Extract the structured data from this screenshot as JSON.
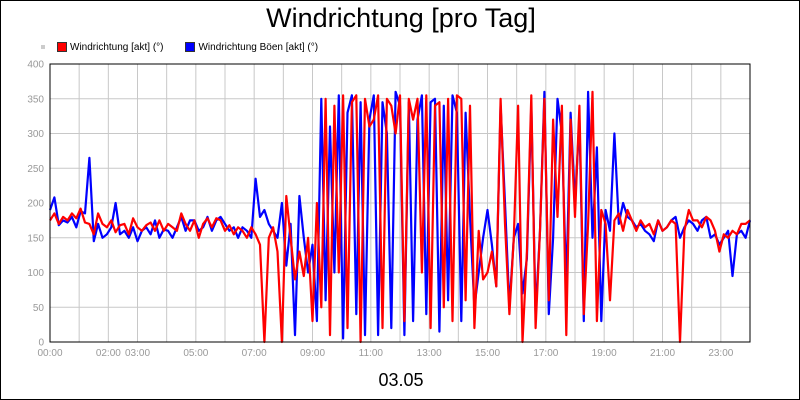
{
  "page": {
    "title": "Windrichtung [pro Tag]",
    "legend": [
      {
        "label": "Windrichtung [akt] (°)",
        "color": "#ff0000"
      },
      {
        "label": "Windrichtung Böen [akt] (°)",
        "color": "#0000ff"
      }
    ]
  },
  "chart_data": {
    "type": "line",
    "title": "Windrichtung [pro Tag]",
    "xlabel": "03.05",
    "ylabel": "",
    "xlim": [
      0,
      24
    ],
    "ylim": [
      0,
      400
    ],
    "grid": true,
    "legend_position": "top-left",
    "y_ticks": [
      "0",
      "50",
      "100",
      "150",
      "200",
      "250",
      "300",
      "350",
      "400"
    ],
    "x_ticks": [
      {
        "label": "00:00",
        "x": 0
      },
      {
        "label": "02:00",
        "x": 2
      },
      {
        "label": "03:00",
        "x": 3
      },
      {
        "label": "05:00",
        "x": 5
      },
      {
        "label": "07:00",
        "x": 7
      },
      {
        "label": "09:00",
        "x": 9
      },
      {
        "label": "11:00",
        "x": 11
      },
      {
        "label": "13:00",
        "x": 13
      },
      {
        "label": "15:00",
        "x": 15
      },
      {
        "label": "17:00",
        "x": 17
      },
      {
        "label": "19:00",
        "x": 19
      },
      {
        "label": "21:00",
        "x": 21
      },
      {
        "label": "23:00",
        "x": 23
      }
    ],
    "series": [
      {
        "name": "Windrichtung [akt] (°)",
        "color": "#ff0000",
        "x": [
          0,
          0.15,
          0.3,
          0.45,
          0.6,
          0.75,
          0.9,
          1.05,
          1.2,
          1.35,
          1.5,
          1.65,
          1.8,
          1.95,
          2.1,
          2.25,
          2.4,
          2.55,
          2.7,
          2.85,
          3.0,
          3.15,
          3.3,
          3.45,
          3.6,
          3.75,
          3.9,
          4.05,
          4.2,
          4.35,
          4.5,
          4.65,
          4.8,
          4.95,
          5.1,
          5.25,
          5.4,
          5.55,
          5.7,
          5.85,
          6.0,
          6.15,
          6.3,
          6.45,
          6.6,
          6.75,
          6.9,
          7.05,
          7.2,
          7.35,
          7.5,
          7.65,
          7.8,
          7.95,
          8.1,
          8.25,
          8.4,
          8.55,
          8.7,
          8.85,
          9.0,
          9.15,
          9.3,
          9.45,
          9.6,
          9.75,
          9.9,
          10.05,
          10.2,
          10.35,
          10.5,
          10.65,
          10.8,
          10.95,
          11.1,
          11.25,
          11.4,
          11.55,
          11.7,
          11.85,
          12.0,
          12.15,
          12.3,
          12.45,
          12.6,
          12.75,
          12.9,
          13.05,
          13.2,
          13.35,
          13.5,
          13.65,
          13.8,
          13.95,
          14.1,
          14.25,
          14.4,
          14.55,
          14.7,
          14.85,
          15.0,
          15.15,
          15.3,
          15.45,
          15.6,
          15.75,
          15.9,
          16.05,
          16.2,
          16.35,
          16.5,
          16.65,
          16.8,
          16.95,
          17.1,
          17.25,
          17.4,
          17.55,
          17.7,
          17.85,
          18.0,
          18.15,
          18.3,
          18.45,
          18.6,
          18.75,
          18.9,
          19.05,
          19.2,
          19.35,
          19.5,
          19.65,
          19.8,
          19.95,
          20.1,
          20.25,
          20.4,
          20.55,
          20.7,
          20.85,
          21.0,
          21.15,
          21.3,
          21.45,
          21.6,
          21.75,
          21.9,
          22.05,
          22.2,
          22.35,
          22.5,
          22.65,
          22.8,
          22.95,
          23.1,
          23.25,
          23.4,
          23.55,
          23.7,
          23.85,
          24.0
        ],
        "values": [
          175,
          185,
          170,
          180,
          175,
          185,
          178,
          192,
          172,
          170,
          155,
          185,
          170,
          165,
          175,
          158,
          168,
          170,
          155,
          178,
          165,
          160,
          168,
          172,
          160,
          175,
          160,
          170,
          165,
          160,
          185,
          170,
          160,
          175,
          150,
          170,
          178,
          165,
          178,
          175,
          160,
          168,
          155,
          165,
          160,
          150,
          165,
          155,
          140,
          0,
          150,
          165,
          130,
          0,
          210,
          150,
          90,
          130,
          95,
          150,
          30,
          200,
          50,
          350,
          10,
          340,
          100,
          355,
          20,
          345,
          355,
          0,
          350,
          310,
          320,
          355,
          20,
          350,
          340,
          300,
          355,
          30,
          350,
          320,
          350,
          100,
          355,
          20,
          340,
          345,
          50,
          350,
          30,
          355,
          350,
          60,
          340,
          20,
          160,
          90,
          100,
          130,
          80,
          350,
          170,
          40,
          150,
          340,
          0,
          130,
          355,
          20,
          160,
          350,
          60,
          320,
          180,
          340,
          10,
          320,
          180,
          340,
          40,
          170,
          360,
          30,
          190,
          170,
          60,
          175,
          185,
          160,
          190,
          175,
          160,
          175,
          165,
          170,
          155,
          175,
          160,
          165,
          175,
          170,
          0,
          160,
          190,
          175,
          175,
          165,
          180,
          175,
          160,
          130,
          155,
          150,
          160,
          155,
          170,
          170,
          175
        ],
        "note": ""
      },
      {
        "name": "Windrichtung Böen [akt] (°)",
        "color": "#0000ff",
        "x": [
          0,
          0.15,
          0.3,
          0.45,
          0.6,
          0.75,
          0.9,
          1.05,
          1.2,
          1.35,
          1.5,
          1.65,
          1.8,
          1.95,
          2.1,
          2.25,
          2.4,
          2.55,
          2.7,
          2.85,
          3.0,
          3.15,
          3.3,
          3.45,
          3.6,
          3.75,
          3.9,
          4.05,
          4.2,
          4.35,
          4.5,
          4.65,
          4.8,
          4.95,
          5.1,
          5.25,
          5.4,
          5.55,
          5.7,
          5.85,
          6.0,
          6.15,
          6.3,
          6.45,
          6.6,
          6.75,
          6.9,
          7.05,
          7.2,
          7.35,
          7.5,
          7.65,
          7.8,
          7.95,
          8.1,
          8.25,
          8.4,
          8.55,
          8.7,
          8.85,
          9.0,
          9.15,
          9.3,
          9.45,
          9.6,
          9.75,
          9.9,
          10.05,
          10.2,
          10.35,
          10.5,
          10.65,
          10.8,
          10.95,
          11.1,
          11.25,
          11.4,
          11.55,
          11.7,
          11.85,
          12.0,
          12.15,
          12.3,
          12.45,
          12.6,
          12.75,
          12.9,
          13.05,
          13.2,
          13.35,
          13.5,
          13.65,
          13.8,
          13.95,
          14.1,
          14.25,
          14.4,
          14.55,
          14.7,
          14.85,
          15.0,
          15.15,
          15.3,
          15.45,
          15.6,
          15.75,
          15.9,
          16.05,
          16.2,
          16.35,
          16.5,
          16.65,
          16.8,
          16.95,
          17.1,
          17.25,
          17.4,
          17.55,
          17.7,
          17.85,
          18.0,
          18.15,
          18.3,
          18.45,
          18.6,
          18.75,
          18.9,
          19.05,
          19.2,
          19.35,
          19.5,
          19.65,
          19.8,
          19.95,
          20.1,
          20.25,
          20.4,
          20.55,
          20.7,
          20.85,
          21.0,
          21.15,
          21.3,
          21.45,
          21.6,
          21.75,
          21.9,
          22.05,
          22.2,
          22.35,
          22.5,
          22.65,
          22.8,
          22.95,
          23.1,
          23.25,
          23.4,
          23.55,
          23.7,
          23.85,
          24.0
        ],
        "values": [
          190,
          208,
          168,
          175,
          172,
          180,
          165,
          188,
          185,
          265,
          145,
          170,
          150,
          155,
          165,
          200,
          155,
          160,
          150,
          165,
          145,
          160,
          165,
          155,
          175,
          150,
          162,
          160,
          150,
          165,
          180,
          160,
          175,
          175,
          160,
          165,
          180,
          160,
          175,
          180,
          170,
          160,
          165,
          150,
          165,
          160,
          150,
          235,
          180,
          190,
          170,
          160,
          150,
          200,
          110,
          170,
          10,
          210,
          150,
          100,
          140,
          30,
          350,
          60,
          310,
          100,
          355,
          5,
          330,
          355,
          40,
          345,
          10,
          320,
          355,
          10,
          345,
          300,
          20,
          360,
          340,
          10,
          345,
          30,
          320,
          355,
          40,
          345,
          350,
          15,
          340,
          60,
          355,
          330,
          30,
          330,
          180,
          50,
          100,
          150,
          190,
          140,
          80,
          340,
          200,
          50,
          150,
          170,
          70,
          120,
          340,
          40,
          160,
          360,
          40,
          150,
          350,
          300,
          80,
          330,
          200,
          320,
          30,
          360,
          150,
          280,
          30,
          190,
          160,
          300,
          170,
          200,
          180,
          175,
          165,
          170,
          160,
          155,
          145,
          175,
          160,
          165,
          175,
          180,
          150,
          165,
          175,
          170,
          160,
          175,
          180,
          150,
          155,
          140,
          150,
          160,
          95,
          155,
          160,
          150,
          175
        ]
      }
    ]
  }
}
